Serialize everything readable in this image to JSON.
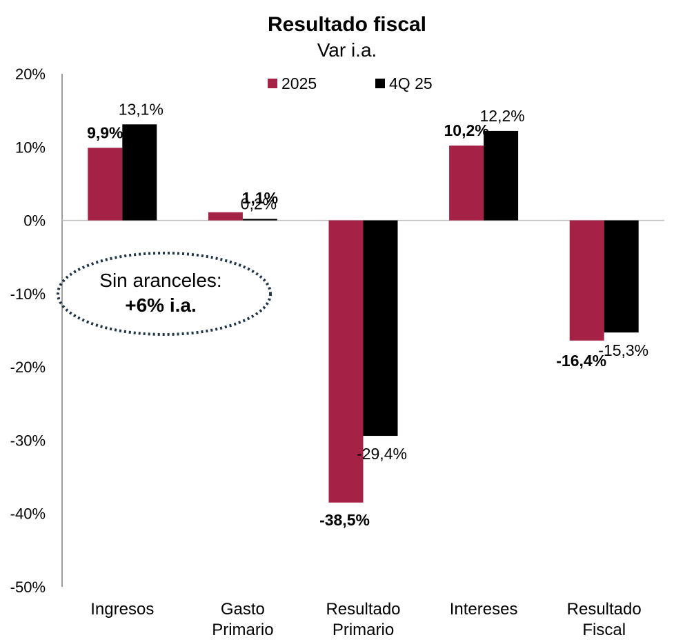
{
  "chart_data": {
    "type": "bar",
    "title": "Resultado fiscal",
    "subtitle": "Var i.a.",
    "categories": [
      [
        "Ingresos"
      ],
      [
        "Gasto",
        "Primario"
      ],
      [
        "Resultado",
        "Primario"
      ],
      [
        "Intereses"
      ],
      [
        "Resultado",
        "Fiscal"
      ]
    ],
    "series": [
      {
        "name": "2025",
        "color": "#A52145",
        "values": [
          9.9,
          1.1,
          -38.5,
          10.2,
          -16.4
        ],
        "labels": [
          "9,9%",
          "1,1%",
          "-38,5%",
          "10,2%",
          "-16,4%"
        ],
        "label_bold": true
      },
      {
        "name": "4Q 25",
        "color": "#000000",
        "values": [
          13.1,
          0.2,
          -29.4,
          12.2,
          -15.3
        ],
        "labels": [
          "13,1%",
          "0,2%",
          "-29,4%",
          "12,2%",
          "-15,3%"
        ],
        "label_bold": false
      }
    ],
    "ylim": [
      -50,
      20
    ],
    "yticks": [
      20,
      10,
      0,
      -10,
      -20,
      -30,
      -40,
      -50
    ],
    "ytick_labels": [
      "20%",
      "10%",
      "0%",
      "-10%",
      "-20%",
      "-30%",
      "-40%",
      "-50%"
    ],
    "legend_position": "top-center",
    "annotation": {
      "line1": "Sin aranceles:",
      "line2": "+6% i.a.",
      "border_color": "#1F3349"
    }
  }
}
